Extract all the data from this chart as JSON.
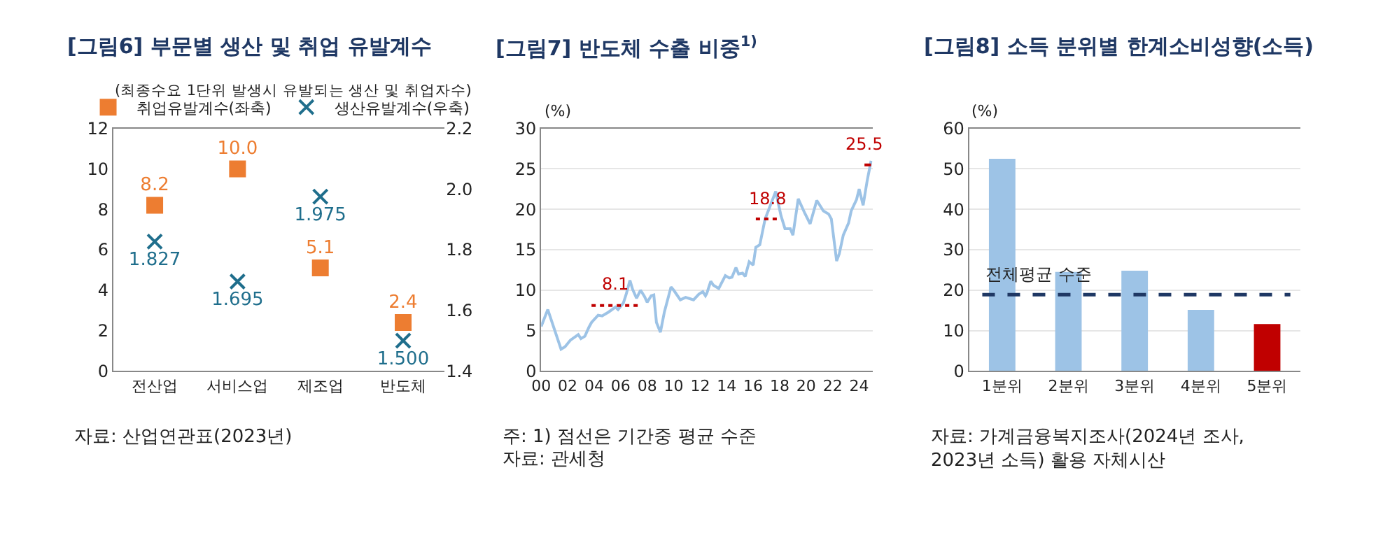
{
  "chart_data": [
    {
      "type": "scatter",
      "title": "[그림6] 부문별 생산 및 취업 유발계수",
      "subtitle": "(최종수요 1단위 발생시 유발되는 생산 및 취업자수)",
      "categories": [
        "전산업",
        "서비스업",
        "제조업",
        "반도체"
      ],
      "series": [
        {
          "name": "취업유발계수(좌축)",
          "color": "#ed7d31",
          "marker": "square",
          "values": [
            8.2,
            10.0,
            5.1,
            2.4
          ],
          "value_labels": [
            "8.2",
            "10.0",
            "5.1",
            "2.4"
          ]
        },
        {
          "name": "생산유발계수(우축)",
          "color": "#1f6e8c",
          "marker": "cross",
          "axis": "y2",
          "values": [
            1.827,
            1.695,
            1.975,
            1.5
          ],
          "value_labels": [
            "1.827",
            "1.695",
            "1.975",
            "1.500"
          ]
        }
      ],
      "ylim": [
        0,
        12
      ],
      "yticks": [
        0,
        2,
        4,
        6,
        8,
        10,
        12
      ],
      "y2lim": [
        1.4,
        2.2
      ],
      "y2ticks": [
        1.4,
        1.6,
        1.8,
        {
          "value": 2.0,
          "label": "2.0"
        },
        2.2
      ],
      "legend": "top",
      "annotations": [
        "자료: 산업연관표(2023년)"
      ]
    },
    {
      "type": "line",
      "title": "[그림7] 반도체 수출 비중$^{1)}$",
      "ylabel": "(%)",
      "series": [
        {
          "color": "#9dc3e6",
          "x": [
            2000.0,
            2000.5,
            2001.5,
            2001.8,
            2002.2,
            2002.8,
            2003.0,
            2003.3,
            2003.6,
            2003.8,
            2004.3,
            2004.6,
            2005.1,
            2005.6,
            2005.8,
            2006.2,
            2006.4,
            2006.7,
            2006.9,
            2007.2,
            2007.5,
            2007.8,
            2008.0,
            2008.3,
            2008.5,
            2008.7,
            2009.0,
            2009.3,
            2009.8,
            2010.0,
            2010.5,
            2010.9,
            2011.3,
            2011.5,
            2011.9,
            2012.2,
            2012.4,
            2012.5,
            2012.8,
            2013.0,
            2013.4,
            2013.9,
            2014.2,
            2014.4,
            2014.7,
            2014.9,
            2015.2,
            2015.4,
            2015.7,
            2016.0,
            2016.2,
            2016.5,
            2016.9,
            2017.3,
            2017.7,
            2018.1,
            2018.4,
            2018.8,
            2019.0,
            2019.4,
            2019.9,
            2020.3,
            2020.8,
            2021.3,
            2021.7,
            2021.9,
            2022.3,
            2022.5,
            2022.8,
            2023.2,
            2023.4,
            2023.8,
            2024.0,
            2024.3,
            2024.6,
            2024.9
          ],
          "values": [
            5.5,
            7.6,
            2.7,
            3.0,
            3.8,
            4.5,
            4.0,
            4.3,
            5.4,
            6.0,
            6.9,
            6.8,
            7.3,
            7.9,
            7.6,
            8.4,
            9.4,
            11.2,
            10.1,
            9.0,
            10.0,
            9.2,
            8.5,
            9.3,
            9.4,
            6.0,
            4.8,
            7.3,
            10.4,
            10.0,
            8.8,
            9.1,
            8.9,
            8.8,
            9.5,
            9.8,
            9.3,
            9.6,
            11.1,
            10.6,
            10.2,
            11.8,
            11.5,
            11.6,
            12.8,
            12.0,
            12.1,
            11.7,
            13.5,
            13.1,
            15.3,
            15.6,
            18.8,
            20.5,
            22.2,
            19.2,
            17.6,
            17.6,
            16.8,
            21.3,
            19.5,
            18.2,
            21.1,
            19.8,
            19.4,
            18.8,
            13.6,
            14.5,
            16.8,
            18.3,
            19.8,
            21.2,
            22.5,
            20.5,
            23.5,
            26.0
          ]
        },
        {
          "type": "line",
          "color": "#c00000",
          "line_style": "dotted",
          "x": [
            2003.8,
            2007.4
          ],
          "values": [
            8.1,
            8.1
          ]
        },
        {
          "type": "line",
          "color": "#c00000",
          "line_style": "dotted",
          "x": [
            2016.2,
            2017.9
          ],
          "values": [
            18.8,
            18.8
          ]
        },
        {
          "type": "line",
          "color": "#c00000",
          "line_style": "solid",
          "x": [
            2024.4,
            2024.9
          ],
          "values": [
            25.5,
            25.5
          ]
        }
      ],
      "xlim": [
        2000,
        2025
      ],
      "xticks": [
        {
          "value": 2000,
          "label": "00"
        },
        {
          "value": 2002,
          "label": "02"
        },
        {
          "value": 2004,
          "label": "04"
        },
        {
          "value": 2006,
          "label": "06"
        },
        {
          "value": 2008,
          "label": "08"
        },
        {
          "value": 2010,
          "label": "10"
        },
        {
          "value": 2012,
          "label": "12"
        },
        {
          "value": 2014,
          "label": "14"
        },
        {
          "value": 2016,
          "label": "16"
        },
        {
          "value": 2018,
          "label": "18"
        },
        {
          "value": 2020,
          "label": "20"
        },
        {
          "value": 2022,
          "label": "22"
        },
        {
          "value": 2024,
          "label": "24"
        }
      ],
      "ylim": [
        0,
        30
      ],
      "yticks": [
        0,
        5,
        10,
        15,
        20,
        25,
        30
      ],
      "grid": "y",
      "annotations": [
        {
          "text": "8.1",
          "x": 2005.6,
          "y": 8.1
        },
        {
          "text": "18.8",
          "x": 2017.05,
          "y": 18.8
        },
        {
          "text": "25.5",
          "x": 2024.4,
          "y": 25.5
        },
        "주: 1) 점선은 기간중 평균 수준",
        "자료: 관세청"
      ]
    },
    {
      "type": "bar",
      "title": "[그림8] 소득 분위별 한계소비성향(소득)",
      "ylabel": "(%)",
      "categories": [
        "1분위",
        "2분위",
        "3분위",
        "4분위",
        "5분위"
      ],
      "values": [
        52.5,
        24.5,
        24.8,
        15.1,
        11.6
      ],
      "colors": [
        "#9dc3e6",
        "#9dc3e6",
        "#9dc3e6",
        "#9dc3e6",
        "#c00000"
      ],
      "ylim": [
        0,
        60
      ],
      "yticks": [
        0,
        10,
        20,
        30,
        40,
        50,
        60
      ],
      "grid": "y",
      "ref_lines": [
        {
          "axis": "y",
          "value": 18.9,
          "label": "전체평균 수준",
          "color": "#1f3864",
          "line_style": "dashed"
        }
      ],
      "annotations": [
        "자료: 가계금융복지조사(2024년 조사,\n2023년 소득) 활용 자체시산"
      ]
    }
  ]
}
